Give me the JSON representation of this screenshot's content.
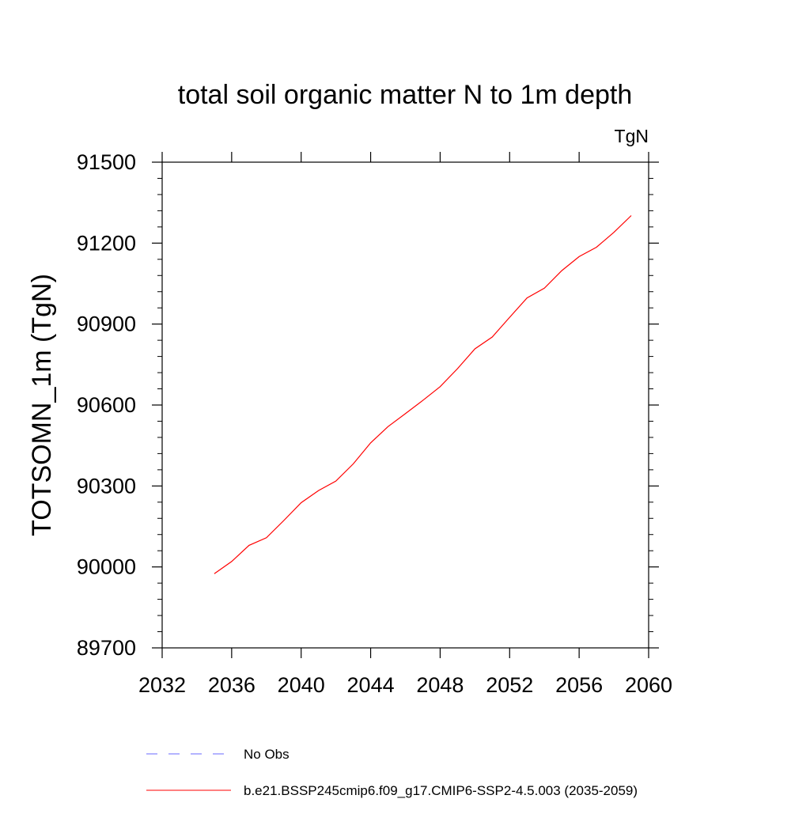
{
  "chart_data": {
    "type": "line",
    "title": "total soil organic matter N to 1m depth",
    "units_label": "TgN",
    "xlabel": "",
    "ylabel": "TOTSOMN_1m  (TgN)",
    "xlim": [
      2032,
      2060
    ],
    "ylim": [
      89700,
      91500
    ],
    "xticks": [
      2032,
      2036,
      2040,
      2044,
      2048,
      2052,
      2056,
      2060
    ],
    "xtick_labels": [
      "2032",
      "2036",
      "2040",
      "2044",
      "2048",
      "2052",
      "2056",
      "2060"
    ],
    "yticks": [
      89700,
      90000,
      90300,
      90600,
      90900,
      91200,
      91500
    ],
    "ytick_labels": [
      "89700",
      "90000",
      "90300",
      "90600",
      "90900",
      "91200",
      "91500"
    ],
    "grid": false,
    "legend_position": "bottom",
    "series": [
      {
        "name": "b.e21.BSSP245cmip6.f09_g17.CMIP6-SSP2-4.5.003 (2035-2059)",
        "color": "#ff0000",
        "dash": "solid",
        "x": [
          2035,
          2036,
          2037,
          2038,
          2039,
          2040,
          2041,
          2042,
          2043,
          2044,
          2045,
          2046,
          2047,
          2048,
          2049,
          2050,
          2051,
          2052,
          2053,
          2054,
          2055,
          2056,
          2057,
          2058,
          2059
        ],
        "y": [
          89975,
          90020,
          90080,
          90108,
          90172,
          90238,
          90283,
          90318,
          90382,
          90460,
          90520,
          90568,
          90617,
          90668,
          90735,
          90808,
          90852,
          90925,
          90997,
          91033,
          91098,
          91150,
          91185,
          91240,
          91302
        ]
      }
    ],
    "legend": [
      {
        "label": "No Obs",
        "color": "#6a6aff",
        "dash": "dashed"
      },
      {
        "label": "b.e21.BSSP245cmip6.f09_g17.CMIP6-SSP2-4.5.003 (2035-2059)",
        "color": "#ff0000",
        "dash": "solid"
      }
    ]
  }
}
